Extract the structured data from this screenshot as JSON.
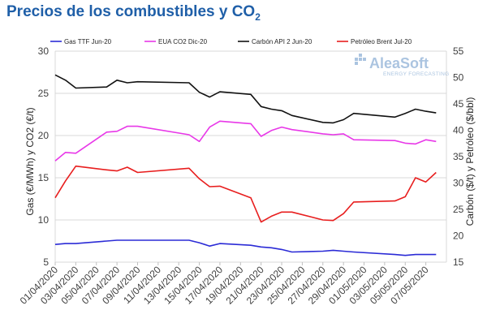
{
  "title": "Precios de los combustibles y CO",
  "title_sub": "2",
  "watermark": {
    "name": "AleaSoft",
    "tagline": "ENERGY FORECASTING"
  },
  "chart_data": {
    "type": "line",
    "x": [
      "01/04/2020",
      "02/04/2020",
      "03/04/2020",
      "06/04/2020",
      "07/04/2020",
      "08/04/2020",
      "09/04/2020",
      "14/04/2020",
      "15/04/2020",
      "16/04/2020",
      "17/04/2020",
      "20/04/2020",
      "21/04/2020",
      "22/04/2020",
      "23/04/2020",
      "24/04/2020",
      "27/04/2020",
      "28/04/2020",
      "29/04/2020",
      "30/04/2020",
      "04/05/2020",
      "05/05/2020",
      "06/05/2020",
      "07/05/2020",
      "08/05/2020"
    ],
    "x_tick_labels": [
      "01/04/2020",
      "03/04/2020",
      "05/04/2020",
      "07/04/2020",
      "09/04/2020",
      "11/04/2020",
      "13/04/2020",
      "15/04/2020",
      "17/04/2020",
      "19/04/2020",
      "21/04/2020",
      "23/04/2020",
      "25/04/2020",
      "27/04/2020",
      "29/04/2020",
      "01/05/2020",
      "03/05/2020",
      "05/05/2020",
      "07/05/2020"
    ],
    "y_left": {
      "label": "Gas (€/MWh) y CO2 (€/t)",
      "min": 5,
      "max": 30,
      "ticks": [
        5,
        10,
        15,
        20,
        25,
        30
      ]
    },
    "y_right": {
      "label": "Carbón ($/t) y Petróleo ($/bbl)",
      "min": 15,
      "max": 55,
      "ticks": [
        15,
        20,
        25,
        30,
        35,
        40,
        45,
        50,
        55
      ]
    },
    "grid": true,
    "legend_position": "top",
    "series": [
      {
        "name": "Gas TTF Jun-20",
        "axis": "left",
        "color": "#2b2bd6",
        "values": [
          7.1,
          7.2,
          7.2,
          7.5,
          7.6,
          7.6,
          7.6,
          7.6,
          7.3,
          6.9,
          7.2,
          7.0,
          6.8,
          6.7,
          6.5,
          6.2,
          6.3,
          6.4,
          6.3,
          6.2,
          5.9,
          5.8,
          5.9,
          5.9,
          5.9
        ]
      },
      {
        "name": "EUA CO2 Dic-20",
        "axis": "left",
        "color": "#e838e8",
        "values": [
          17.0,
          18.0,
          17.9,
          20.4,
          20.5,
          21.1,
          21.1,
          20.1,
          19.3,
          21.0,
          21.7,
          21.4,
          19.9,
          20.6,
          21.0,
          20.7,
          20.2,
          20.1,
          20.2,
          19.5,
          19.4,
          19.1,
          19.0,
          19.5,
          19.3
        ]
      },
      {
        "name": "Carbón API 2 Jun-20",
        "axis": "right",
        "color": "#111111",
        "values": [
          50.5,
          49.5,
          48.0,
          48.2,
          49.5,
          49.0,
          49.2,
          49.0,
          47.2,
          46.3,
          47.3,
          46.8,
          44.5,
          44.0,
          43.7,
          42.8,
          41.5,
          41.4,
          42.0,
          43.2,
          42.5,
          43.2,
          44.0,
          43.6,
          43.3
        ]
      },
      {
        "name": "Petróleo Brent Jul-20",
        "axis": "right",
        "color": "#e81e1e",
        "values": [
          27.2,
          30.4,
          33.2,
          32.5,
          32.3,
          33.0,
          32.0,
          32.8,
          30.8,
          29.3,
          29.4,
          27.2,
          22.6,
          23.7,
          24.5,
          24.5,
          23.0,
          22.9,
          24.2,
          26.4,
          26.6,
          27.4,
          31.0,
          30.2,
          32.0
        ]
      }
    ]
  }
}
